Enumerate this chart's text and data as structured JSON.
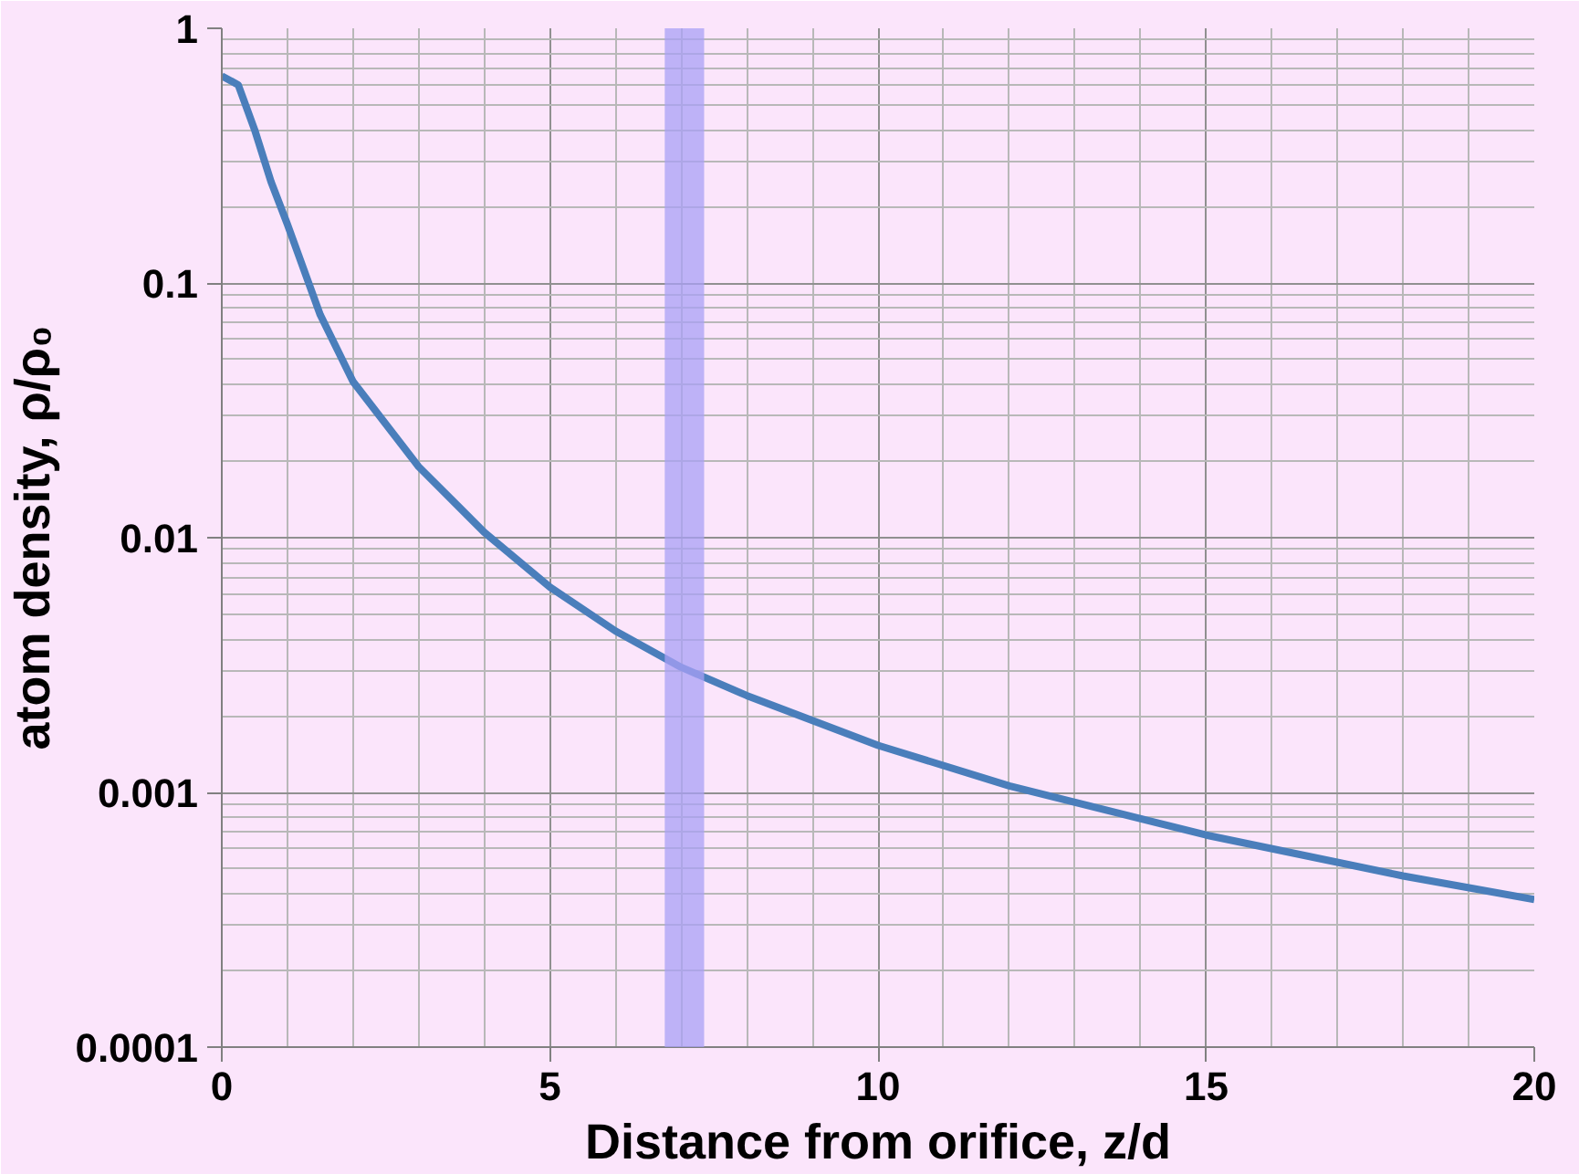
{
  "chart_data": {
    "type": "line",
    "xlabel": "Distance from orifice, z/d",
    "ylabel": "atom density, ρ/ρ₀",
    "log": "y",
    "grid": true,
    "marker": "none",
    "line_style": "solid",
    "xlim": [
      0,
      20
    ],
    "xticks": [
      0,
      5,
      10,
      15,
      20
    ],
    "ylim": [
      0.0001,
      1
    ],
    "yticks": [
      0.0001,
      0.001,
      0.01,
      0.1,
      1
    ],
    "bands": [
      {
        "axis": "x",
        "from": 6.75,
        "to": 7.35,
        "color": "#a9a0f5"
      }
    ],
    "series": [
      {
        "color": "#4a7ebb",
        "x": [
          0,
          0.25,
          0.5,
          0.75,
          1,
          1.5,
          2,
          3,
          4,
          5,
          6,
          7,
          8,
          10,
          12,
          15,
          18,
          20
        ],
        "values": [
          0.65,
          0.6,
          0.4,
          0.25,
          0.17,
          0.075,
          0.041,
          0.019,
          0.0105,
          0.0064,
          0.0043,
          0.0031,
          0.0024,
          0.00153,
          0.00106,
          0.00068,
          0.00047,
          0.00038
        ]
      }
    ]
  }
}
